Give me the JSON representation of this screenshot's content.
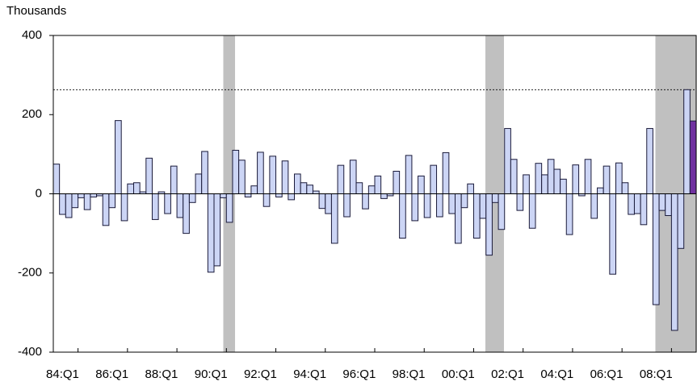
{
  "chart_data": {
    "type": "bar",
    "y_label": "Thousands",
    "categories": [
      null,
      "84:Q1",
      null,
      null,
      null,
      null,
      null,
      null,
      null,
      "86:Q1",
      null,
      null,
      null,
      null,
      null,
      null,
      null,
      "88:Q1",
      null,
      null,
      null,
      null,
      null,
      null,
      null,
      "90:Q1",
      null,
      null,
      null,
      null,
      null,
      null,
      null,
      "92:Q1",
      null,
      null,
      null,
      null,
      null,
      null,
      null,
      "94:Q1",
      null,
      null,
      null,
      null,
      null,
      null,
      null,
      "96:Q1",
      null,
      null,
      null,
      null,
      null,
      null,
      null,
      "98:Q1",
      null,
      null,
      null,
      null,
      null,
      null,
      null,
      "00:Q1",
      null,
      null,
      null,
      null,
      null,
      null,
      null,
      "02:Q1",
      null,
      null,
      null,
      null,
      null,
      null,
      null,
      "04:Q1",
      null,
      null,
      null,
      null,
      null,
      null,
      null,
      "06:Q1",
      null,
      null,
      null,
      null,
      null,
      null,
      null,
      "08:Q1",
      null,
      null,
      null,
      null,
      null,
      null
    ],
    "series": [
      {
        "color": "#ccd5f5",
        "values": [
          75,
          -52,
          -60,
          -35,
          -10,
          -40,
          -8,
          -5,
          -80,
          -35,
          185,
          -68,
          25,
          28,
          5,
          90,
          -65,
          5,
          -50,
          70,
          -60,
          -100,
          -22,
          50,
          107,
          -198,
          -182,
          -10,
          -72,
          110,
          85,
          -8,
          20,
          105,
          -32,
          95,
          -8,
          83,
          -15,
          50,
          28,
          22,
          7,
          -37,
          -50,
          -125,
          72,
          -58,
          85,
          28,
          -38,
          20,
          45,
          -12,
          -5,
          57,
          -112,
          97,
          -68,
          45,
          -60,
          72,
          -58,
          104,
          -50,
          -125,
          -35,
          25,
          -112,
          -62,
          -155,
          -22,
          -90,
          165,
          87,
          -42,
          48,
          -87,
          77,
          48,
          87,
          62,
          37,
          -103,
          73,
          -5,
          87,
          -62,
          15,
          70,
          -203,
          78,
          28,
          -52,
          -50,
          -78,
          165,
          -280,
          -42,
          -55,
          -345,
          -138,
          263,
          null
        ]
      },
      {
        "color": "#7030a0",
        "values": [
          null,
          null,
          null,
          null,
          null,
          null,
          null,
          null,
          null,
          null,
          null,
          null,
          null,
          null,
          null,
          null,
          null,
          null,
          null,
          null,
          null,
          null,
          null,
          null,
          null,
          null,
          null,
          null,
          null,
          null,
          null,
          null,
          null,
          null,
          null,
          null,
          null,
          null,
          null,
          null,
          null,
          null,
          null,
          null,
          null,
          null,
          null,
          null,
          null,
          null,
          null,
          null,
          null,
          null,
          null,
          null,
          null,
          null,
          null,
          null,
          null,
          null,
          null,
          null,
          null,
          null,
          null,
          null,
          null,
          null,
          null,
          null,
          null,
          null,
          null,
          null,
          null,
          null,
          null,
          null,
          null,
          null,
          null,
          null,
          null,
          null,
          null,
          null,
          null,
          null,
          null,
          null,
          null,
          null,
          null,
          null,
          null,
          null,
          null,
          null,
          null,
          null,
          null,
          184
        ]
      }
    ],
    "reference_line": 263,
    "ylim": [
      -400,
      400
    ],
    "yticks": [
      -400,
      -200,
      0,
      200,
      400
    ]
  }
}
